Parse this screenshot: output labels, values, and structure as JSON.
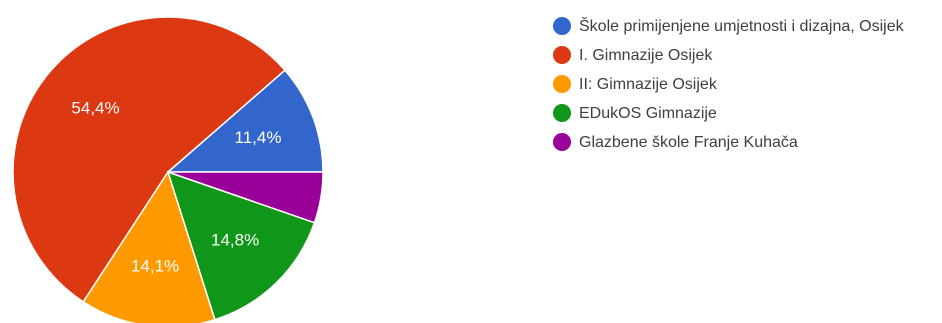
{
  "chart_data": {
    "type": "pie",
    "start_angle_deg": 0,
    "direction": "counterclockwise",
    "slices": [
      {
        "label": "Škole primijenjene umjetnosti i dizajna, Osijek",
        "value": 11.4,
        "display": "11,4%",
        "color": "#3366cc"
      },
      {
        "label": "I. Gimnazije Osijek",
        "value": 54.4,
        "display": "54,4%",
        "color": "#dc3912"
      },
      {
        "label": "II: Gimnazije Osijek",
        "value": 14.1,
        "display": "14,1%",
        "color": "#ff9900"
      },
      {
        "label": "EDukOS Gimnazije",
        "value": 14.8,
        "display": "14,8%",
        "color": "#109618"
      },
      {
        "label": "Glazbene škole Franje Kuhača",
        "value": 5.3,
        "display": "",
        "color": "#990099"
      }
    ],
    "legend_position": "right"
  }
}
